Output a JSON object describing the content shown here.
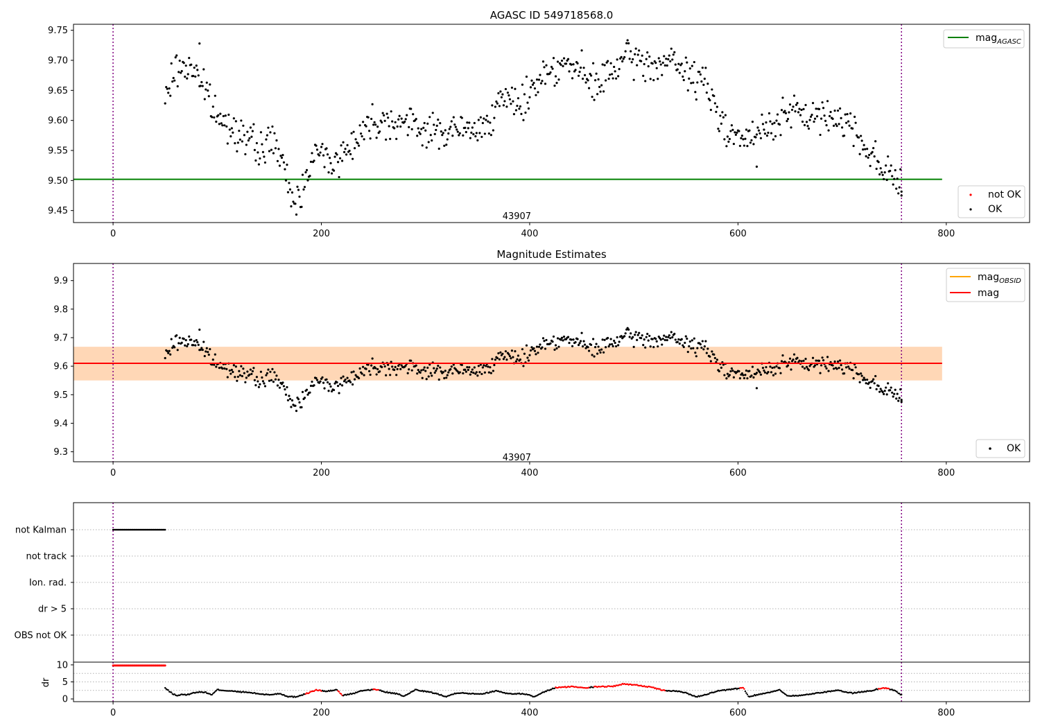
{
  "chart_data": [
    {
      "type": "scatter",
      "title": "AGASC ID 549718568.0",
      "xlim": [
        -38,
        880
      ],
      "ylim": [
        9.43,
        9.76
      ],
      "xticks": [
        0,
        200,
        400,
        600,
        800
      ],
      "yticks": [
        9.45,
        9.5,
        9.55,
        9.6,
        9.65,
        9.7,
        9.75
      ],
      "ytick_labels": [
        "9.45",
        "9.50",
        "9.55",
        "9.60",
        "9.65",
        "9.70",
        "9.75"
      ],
      "vlines": [
        0,
        757
      ],
      "annotation": {
        "text": "43907",
        "x": 379,
        "y": 9.436
      },
      "reference_line": {
        "label_main": "mag",
        "label_sub": "AGASC",
        "value": 9.502,
        "x_range": [
          -38,
          796
        ],
        "color": "#008000"
      },
      "series": [
        {
          "name": "not OK",
          "color": "#ff0000",
          "points": []
        },
        {
          "name": "OK",
          "color": "#000000",
          "profile": [
            [
              50,
              9.63
            ],
            [
              58,
              9.68
            ],
            [
              68,
              9.69
            ],
            [
              80,
              9.685
            ],
            [
              88,
              9.65
            ],
            [
              96,
              9.62
            ],
            [
              104,
              9.595
            ],
            [
              118,
              9.59
            ],
            [
              128,
              9.57
            ],
            [
              140,
              9.55
            ],
            [
              155,
              9.57
            ],
            [
              163,
              9.52
            ],
            [
              172,
              9.47
            ],
            [
              180,
              9.47
            ],
            [
              187,
              9.53
            ],
            [
              198,
              9.545
            ],
            [
              215,
              9.53
            ],
            [
              232,
              9.57
            ],
            [
              250,
              9.6
            ],
            [
              270,
              9.6
            ],
            [
              290,
              9.59
            ],
            [
              310,
              9.58
            ],
            [
              330,
              9.585
            ],
            [
              350,
              9.58
            ],
            [
              362,
              9.61
            ],
            [
              380,
              9.635
            ],
            [
              395,
              9.63
            ],
            [
              410,
              9.675
            ],
            [
              430,
              9.695
            ],
            [
              450,
              9.68
            ],
            [
              460,
              9.655
            ],
            [
              478,
              9.68
            ],
            [
              495,
              9.705
            ],
            [
              515,
              9.69
            ],
            [
              535,
              9.7
            ],
            [
              552,
              9.675
            ],
            [
              568,
              9.665
            ],
            [
              580,
              9.61
            ],
            [
              595,
              9.58
            ],
            [
              610,
              9.565
            ],
            [
              625,
              9.585
            ],
            [
              645,
              9.61
            ],
            [
              660,
              9.61
            ],
            [
              680,
              9.605
            ],
            [
              700,
              9.605
            ],
            [
              712,
              9.585
            ],
            [
              725,
              9.55
            ],
            [
              740,
              9.52
            ],
            [
              750,
              9.505
            ],
            [
              757,
              9.5
            ]
          ],
          "outliers": [
            [
              83,
              9.728
            ],
            [
              618,
              9.523
            ],
            [
              757,
              9.475
            ]
          ]
        }
      ],
      "legends": [
        {
          "entries": [
            {
              "label_main": "mag",
              "label_sub": "AGASC",
              "kind": "line",
              "color": "#008000"
            }
          ],
          "placement": "upper right"
        },
        {
          "entries": [
            {
              "label_main": "not OK",
              "label_sub": "",
              "kind": "dot",
              "color": "#ff0000"
            },
            {
              "label_main": "OK",
              "label_sub": "",
              "kind": "dot",
              "color": "#000000"
            }
          ],
          "placement": "lower right"
        }
      ]
    },
    {
      "type": "scatter",
      "title": "Magnitude Estimates",
      "xlim": [
        -38,
        880
      ],
      "ylim": [
        9.265,
        9.96
      ],
      "xticks": [
        0,
        200,
        400,
        600,
        800
      ],
      "yticks": [
        9.3,
        9.4,
        9.5,
        9.6,
        9.7,
        9.8,
        9.9
      ],
      "ytick_labels": [
        "9.3",
        "9.4",
        "9.5",
        "9.6",
        "9.7",
        "9.8",
        "9.9"
      ],
      "vlines": [
        0,
        757
      ],
      "annotation": {
        "text": "43907",
        "x": 379,
        "y": 9.28
      },
      "bands": [
        {
          "y0": 9.55,
          "y1": 9.668,
          "x_range": [
            -38,
            796
          ],
          "color": "#ffb6c1",
          "opacity": 0.35
        },
        {
          "y0": 9.55,
          "y1": 9.668,
          "x_range": [
            -38,
            796
          ],
          "color": "#ffa500",
          "opacity": 0.22
        }
      ],
      "reference_lines": [
        {
          "label_main": "mag",
          "label_sub": "",
          "value": 9.61,
          "x_range": [
            -38,
            796
          ],
          "color": "#ff0000"
        }
      ],
      "series": [
        {
          "name": "OK",
          "color": "#000000",
          "same_as_series_of_panel": 0
        }
      ],
      "legends": [
        {
          "entries": [
            {
              "label_main": "mag",
              "label_sub": "OBSID",
              "kind": "line",
              "color": "#ffa500"
            },
            {
              "label_main": "mag",
              "label_sub": "",
              "kind": "line",
              "color": "#ff0000"
            }
          ],
          "placement": "upper right"
        },
        {
          "entries": [
            {
              "label_main": "OK",
              "label_sub": "",
              "kind": "dot",
              "color": "#000000"
            }
          ],
          "placement": "lower right"
        }
      ]
    },
    {
      "type": "scatter",
      "title": "",
      "xlim": [
        -38,
        880
      ],
      "categories": [
        "not Kalman",
        "not track",
        "Ion. rad.",
        "dr > 5",
        "OBS not OK"
      ],
      "vlines": [
        0,
        757
      ],
      "flag_runs": [
        {
          "category": "not Kalman",
          "x_range": [
            0,
            50
          ],
          "color": "#000000"
        }
      ]
    },
    {
      "type": "scatter",
      "title": "",
      "ylabel": "dr",
      "xlim": [
        -38,
        880
      ],
      "ylim": [
        -0.8,
        10.8
      ],
      "xticks": [
        0,
        200,
        400,
        600,
        800
      ],
      "yticks": [
        0,
        5,
        10
      ],
      "ytick_labels": [
        "0",
        "5",
        "10"
      ],
      "vlines": [
        0,
        757
      ],
      "saturated_run": {
        "x_range": [
          0,
          50
        ],
        "value": 9.8,
        "color": "#ff0000"
      },
      "profile": [
        [
          50,
          3.2
        ],
        [
          54,
          2.2
        ],
        [
          58,
          1.4
        ],
        [
          62,
          0.9
        ],
        [
          66,
          1.4
        ],
        [
          70,
          1.1
        ],
        [
          74,
          1.5
        ],
        [
          80,
          2
        ],
        [
          88,
          2
        ],
        [
          95,
          1.2
        ],
        [
          100,
          2.7
        ],
        [
          110,
          2.4
        ],
        [
          120,
          2.1
        ],
        [
          130,
          1.9
        ],
        [
          140,
          1.5
        ],
        [
          150,
          1.2
        ],
        [
          160,
          1.6
        ],
        [
          168,
          0.7
        ],
        [
          175,
          0.6
        ],
        [
          185,
          1.5
        ],
        [
          195,
          2.6
        ],
        [
          205,
          2.2
        ],
        [
          215,
          2.7
        ],
        [
          220,
          1
        ],
        [
          232,
          1.7
        ],
        [
          240,
          2.5
        ],
        [
          252,
          2.8
        ],
        [
          262,
          2
        ],
        [
          272,
          1.5
        ],
        [
          280,
          0.8
        ],
        [
          290,
          2.7
        ],
        [
          300,
          2.2
        ],
        [
          310,
          1.6
        ],
        [
          320,
          0.7
        ],
        [
          330,
          1.8
        ],
        [
          342,
          1.6
        ],
        [
          355,
          1.5
        ],
        [
          368,
          2.4
        ],
        [
          380,
          1.5
        ],
        [
          395,
          1.5
        ],
        [
          405,
          0.6
        ],
        [
          415,
          2.2
        ],
        [
          425,
          3.3
        ],
        [
          440,
          3.6
        ],
        [
          455,
          3.3
        ],
        [
          465,
          3.6
        ],
        [
          480,
          3.7
        ],
        [
          490,
          4.4
        ],
        [
          505,
          4
        ],
        [
          520,
          3.2
        ],
        [
          530,
          2.4
        ],
        [
          540,
          2.3
        ],
        [
          550,
          1.8
        ],
        [
          560,
          0.6
        ],
        [
          570,
          1.4
        ],
        [
          580,
          2.3
        ],
        [
          592,
          2.7
        ],
        [
          605,
          3.3
        ],
        [
          610,
          0.7
        ],
        [
          620,
          1.3
        ],
        [
          632,
          2.1
        ],
        [
          640,
          2.6
        ],
        [
          648,
          0.9
        ],
        [
          660,
          1
        ],
        [
          680,
          1.9
        ],
        [
          695,
          2.5
        ],
        [
          710,
          1.7
        ],
        [
          720,
          2.1
        ],
        [
          728,
          2.4
        ],
        [
          735,
          3
        ],
        [
          742,
          3.2
        ],
        [
          750,
          2.5
        ],
        [
          757,
          1.2
        ]
      ],
      "red_ranges": [
        [
          185,
          200
        ],
        [
          216,
          220
        ],
        [
          250,
          255
        ],
        [
          425,
          457
        ],
        [
          462,
          530
        ],
        [
          602,
          606
        ],
        [
          735,
          745
        ]
      ]
    }
  ]
}
